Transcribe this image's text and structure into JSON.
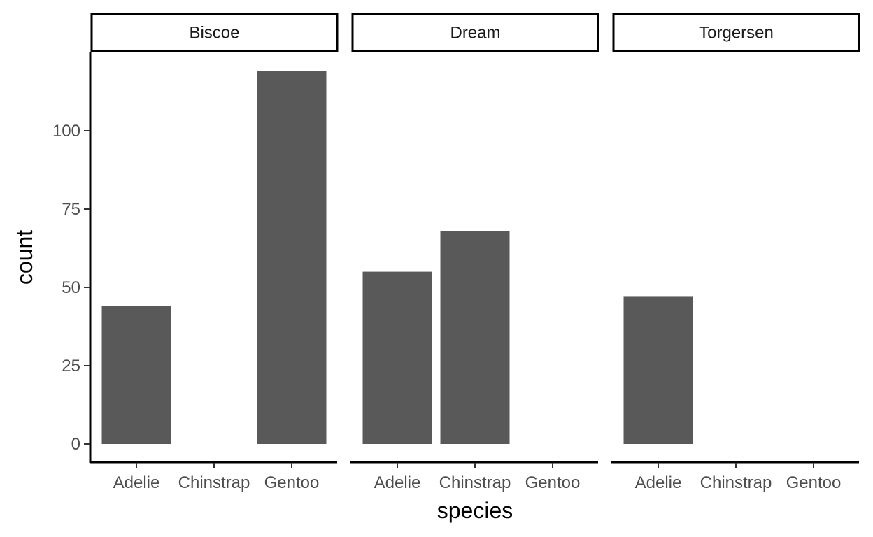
{
  "chart_data": {
    "type": "bar",
    "xlabel": "species",
    "ylabel": "count",
    "ylim": [
      0,
      119
    ],
    "yticks": [
      0,
      25,
      50,
      75,
      100
    ],
    "categories": [
      "Adelie",
      "Chinstrap",
      "Gentoo"
    ],
    "bar_color": "#595959",
    "facets": [
      {
        "name": "Biscoe",
        "values": [
          44,
          0,
          119
        ]
      },
      {
        "name": "Dream",
        "values": [
          55,
          68,
          0
        ]
      },
      {
        "name": "Torgersen",
        "values": [
          47,
          0,
          0
        ]
      }
    ]
  }
}
